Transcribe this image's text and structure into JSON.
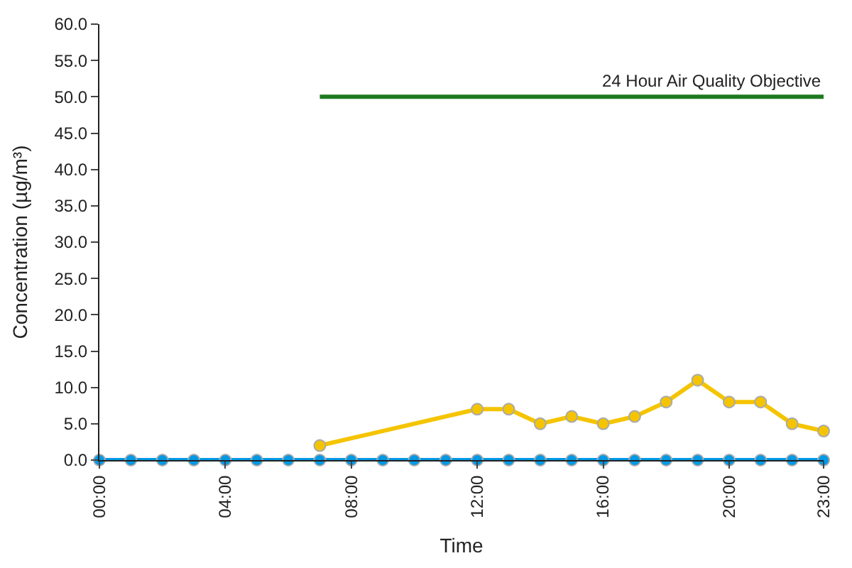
{
  "chart_data": {
    "type": "line",
    "xlabel": "Time",
    "ylabel": "Concentration (µg/m³)",
    "x": [
      0,
      1,
      2,
      3,
      4,
      5,
      6,
      7,
      8,
      9,
      10,
      11,
      12,
      13,
      14,
      15,
      16,
      17,
      18,
      19,
      20,
      21,
      22,
      23
    ],
    "series": [
      {
        "color": "#0099e6",
        "values": [
          0,
          0,
          0,
          0,
          0,
          0,
          0,
          0,
          0,
          0,
          0,
          0,
          0,
          0,
          0,
          0,
          0,
          0,
          0,
          0,
          0,
          0,
          0,
          0
        ]
      },
      {
        "color": "#f5c400",
        "x": [
          7,
          12,
          13,
          14,
          15,
          16,
          17,
          18,
          19,
          20,
          21,
          22,
          23
        ],
        "values": [
          2,
          7,
          7,
          5,
          6,
          5,
          6,
          8,
          11,
          8,
          8,
          5,
          4
        ]
      },
      {
        "name": "24 Hour Air Quality Objective",
        "color": "#1e7a1e",
        "marker": "none",
        "x": [
          7,
          23
        ],
        "values": [
          50,
          50
        ]
      }
    ],
    "marker": "circle",
    "legend": false,
    "xlim": [
      0,
      23
    ],
    "xticks": [
      {
        "value": 0,
        "label": "00:00"
      },
      {
        "value": 4,
        "label": "04:00"
      },
      {
        "value": 8,
        "label": "08:00"
      },
      {
        "value": 12,
        "label": "12:00"
      },
      {
        "value": 16,
        "label": "16:00"
      },
      {
        "value": 20,
        "label": "20:00"
      },
      {
        "value": 23,
        "label": "23:00"
      }
    ],
    "ylim": [
      0,
      60
    ],
    "yticks": [
      {
        "value": 0,
        "label": "0.0"
      },
      {
        "value": 5,
        "label": "5.0"
      },
      {
        "value": 10,
        "label": "10.0"
      },
      {
        "value": 15,
        "label": "15.0"
      },
      {
        "value": 20,
        "label": "20.0"
      },
      {
        "value": 25,
        "label": "25.0"
      },
      {
        "value": 30,
        "label": "30.0"
      },
      {
        "value": 35,
        "label": "35.0"
      },
      {
        "value": 40,
        "label": "40.0"
      },
      {
        "value": 45,
        "label": "45.0"
      },
      {
        "value": 50,
        "label": "50.0"
      },
      {
        "value": 55,
        "label": "55.0"
      },
      {
        "value": 60,
        "label": "60.0"
      }
    ]
  }
}
